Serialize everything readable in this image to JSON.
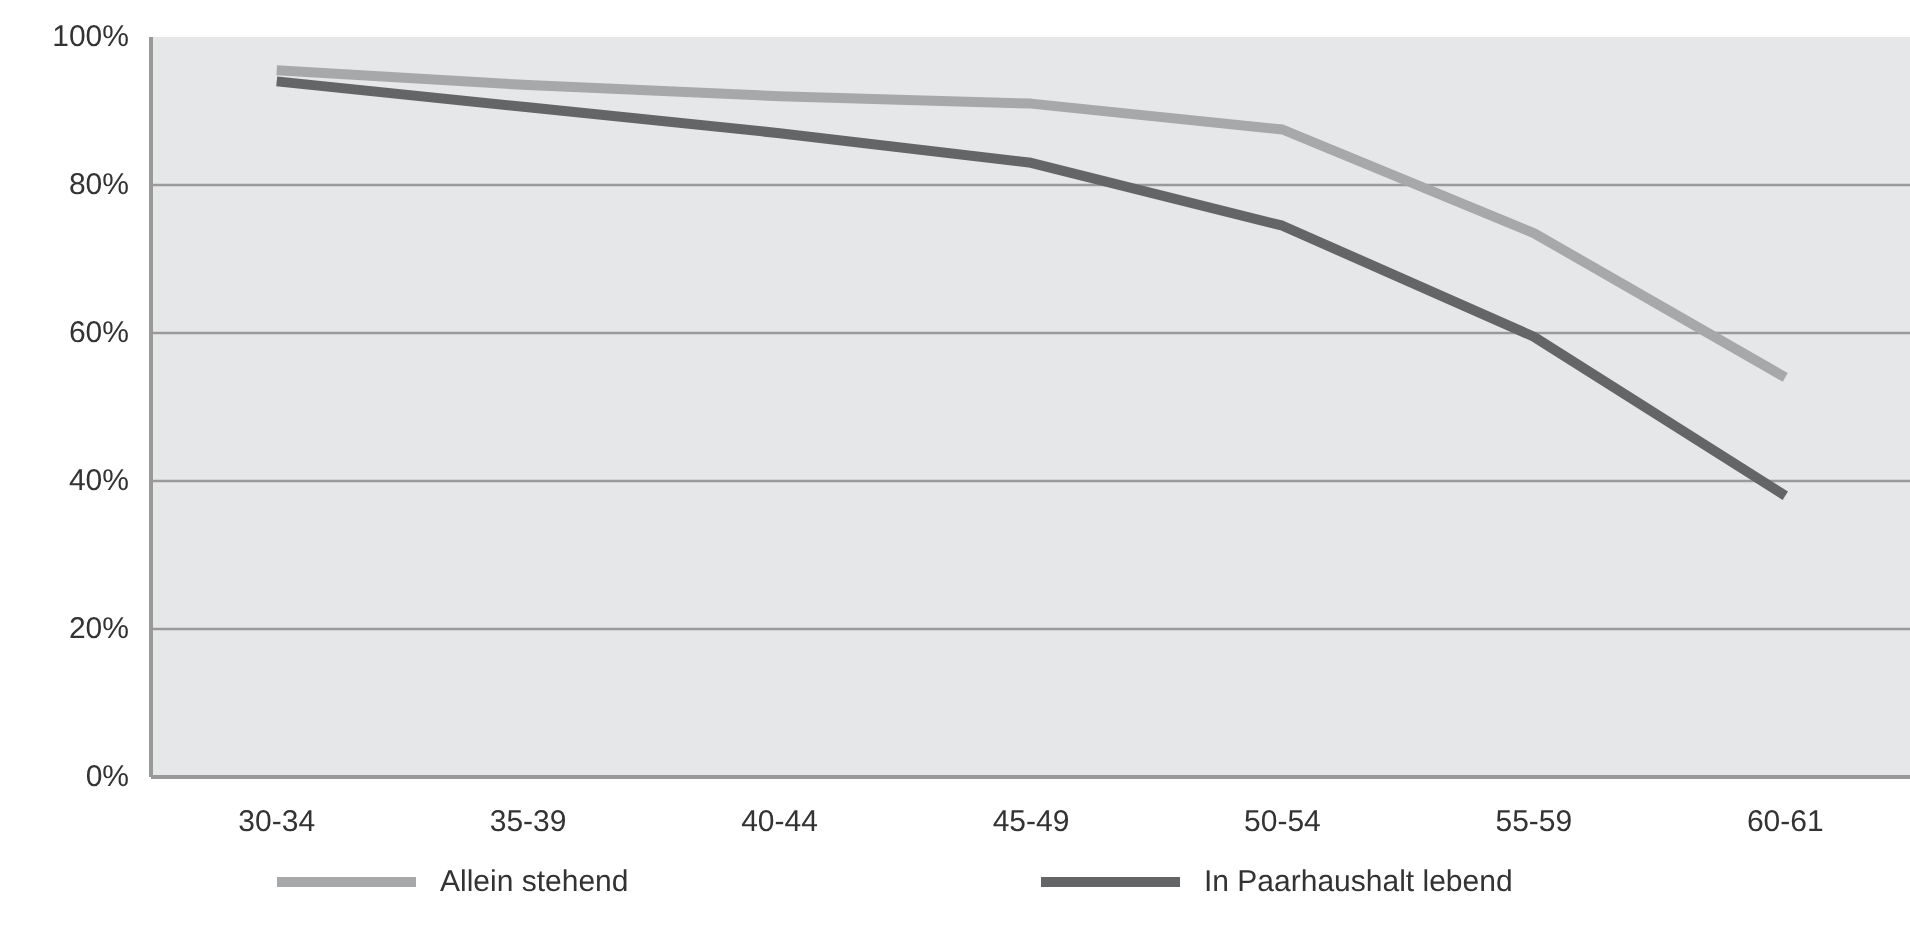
{
  "chart_data": {
    "type": "line",
    "categories": [
      "30-34",
      "35-39",
      "40-44",
      "45-49",
      "50-54",
      "55-59",
      "60-61"
    ],
    "series": [
      {
        "name": "Allein stehend",
        "color": "#a7a8aa",
        "values": [
          95.5,
          93.5,
          92,
          91,
          87.5,
          73.5,
          54
        ]
      },
      {
        "name": "In Paarhaushalt lebend",
        "color": "#646567",
        "values": [
          94,
          90.5,
          87,
          83,
          74.5,
          59.5,
          38
        ]
      }
    ],
    "ylim": [
      0,
      100
    ],
    "yticks": [
      {
        "value": 0,
        "label": "0%"
      },
      {
        "value": 20,
        "label": "20%"
      },
      {
        "value": 40,
        "label": "40%"
      },
      {
        "value": 60,
        "label": "60%"
      },
      {
        "value": 80,
        "label": "80%"
      },
      {
        "value": 100,
        "label": "100%"
      }
    ],
    "grid": "y",
    "legend": "bottom",
    "marker": "none",
    "line_style": "solid"
  }
}
